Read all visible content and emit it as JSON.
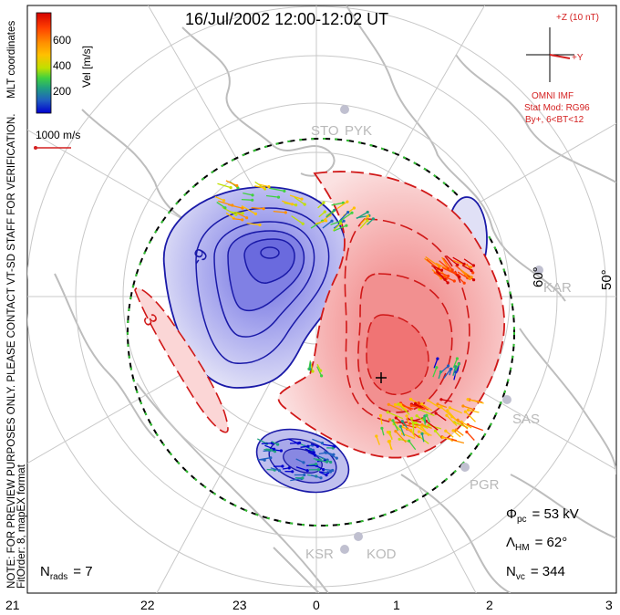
{
  "title": "16/Jul/2002 12:00-12:02 UT",
  "side_note": {
    "line1": "NOTE: FOR PREVIEW PURPOSES ONLY. PLEASE CONTACT VT-SD STAFF FOR VERIFICATION.",
    "line2": "FitOrder: 8, mapEX format"
  },
  "coords_label": "MLT coordinates",
  "colorbar": {
    "label": "Vel [m/s]",
    "ticks": [
      "600",
      "400",
      "200"
    ],
    "colors": [
      "#d40000",
      "#ff4000",
      "#ff9000",
      "#ffc000",
      "#c0e000",
      "#40d040",
      "#20a080",
      "#2060c0",
      "#0000d0"
    ]
  },
  "reference_vector": {
    "label": "1000 m/s",
    "color": "#d42020"
  },
  "imf": {
    "z_label": "+Z (10 nT)",
    "y_label": "+Y",
    "source": "OMNI IMF",
    "model": "Stat Mod: RG96",
    "condition": "By+, 6<BT<12",
    "color": "#d42020"
  },
  "stations": [
    "STO",
    "PYK",
    "KAR",
    "SAS",
    "PGR",
    "KOD",
    "KSR"
  ],
  "latitude_labels": [
    "60°",
    "50°"
  ],
  "mlt_labels": [
    "21",
    "22",
    "23",
    "0",
    "1",
    "2",
    "3"
  ],
  "contour_labels": {
    "negative": "-9",
    "positive": "3"
  },
  "stats": {
    "phi_symbol": "Φ",
    "phi_sub": "pc",
    "phi_value": "= 53 kV",
    "lambda_symbol": "Λ",
    "lambda_sub": "HM",
    "lambda_value": "= 62°",
    "nvc_symbol": "N",
    "nvc_sub": "vc",
    "nvc_value": "= 344",
    "nrads_symbol": "N",
    "nrads_sub": "rads",
    "nrads_value": "= 7"
  },
  "colors": {
    "negative_contour": "#1a1aa8",
    "negative_fill": "#8a8ae8",
    "positive_contour": "#d01818",
    "positive_fill": "#f07070",
    "boundary": "#30c030",
    "grid": "#c8c8c8",
    "coastline": "#bdbdbd"
  }
}
